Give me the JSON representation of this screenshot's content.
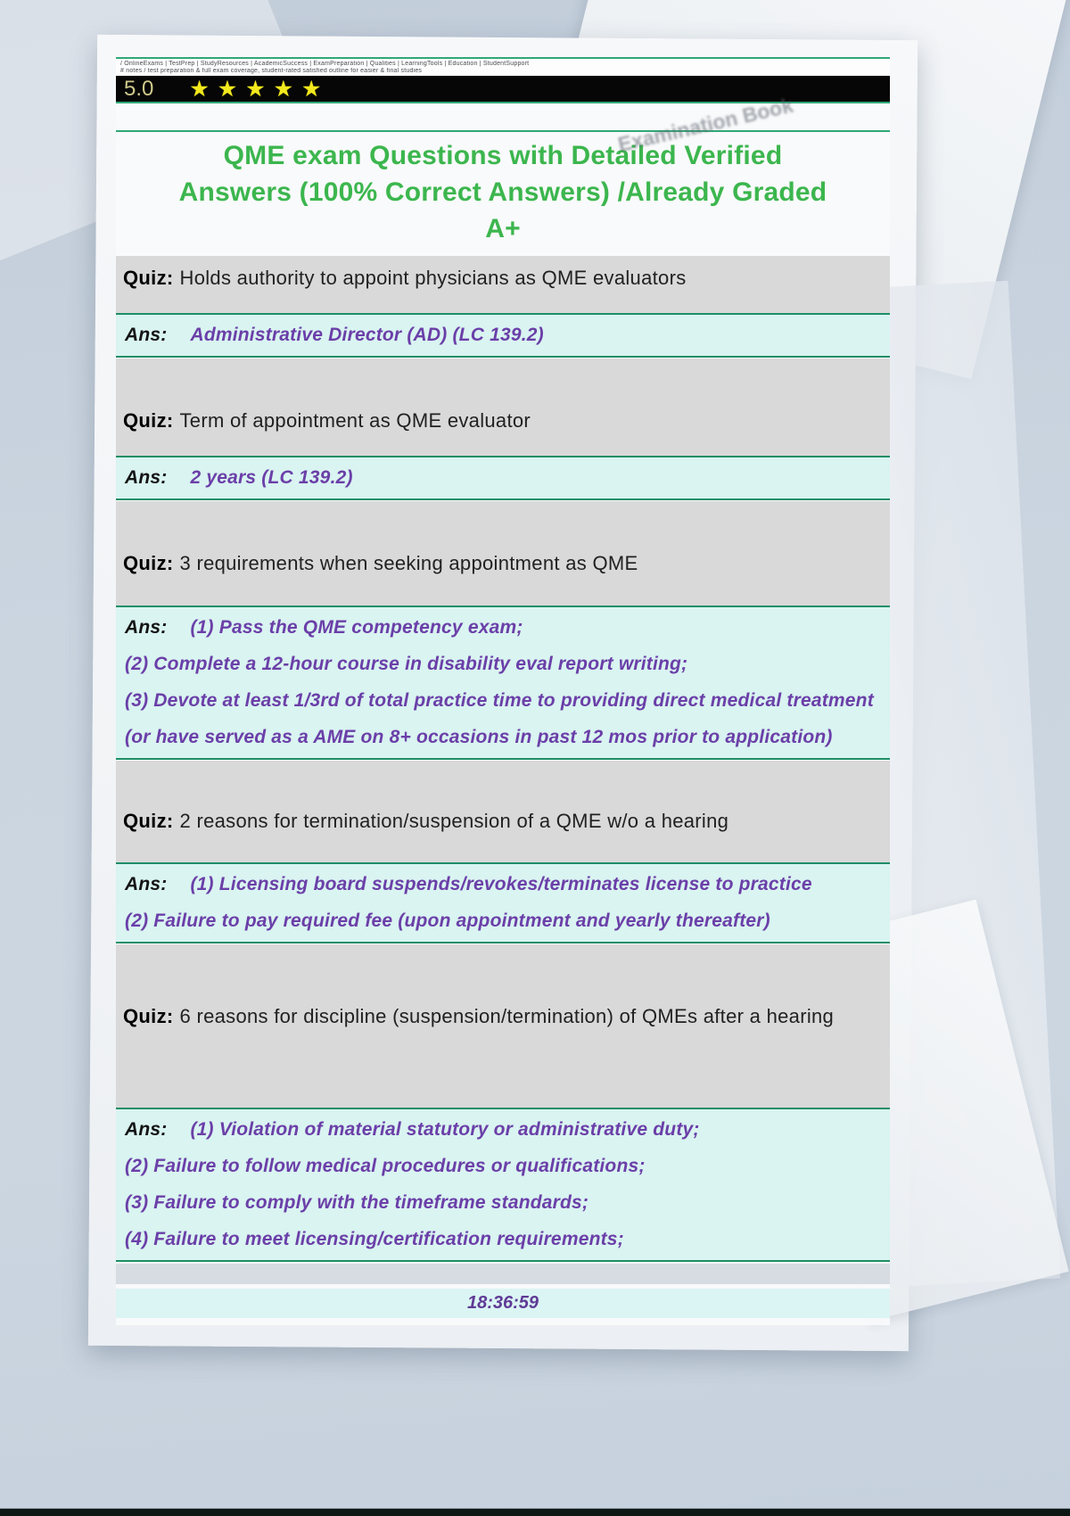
{
  "header": {
    "links_line1": "/ OnlineExams | TestPrep | StudyResources | AcademicSuccess | ExamPreparation | Qualities | LearningTools | Education | StudentSupport",
    "links_line2": "# notes / test preparation & full exam coverage, student-rated satisfied outline for easier & final studies",
    "rating_score": "5.0",
    "rating_stars": "★★★★★"
  },
  "watermark": "Examination Book",
  "title_lines": [
    "QME exam Questions with Detailed Verified",
    "Answers (100% Correct Answers) /Already Graded",
    "A+"
  ],
  "qa": [
    {
      "quiz_label": "Quiz:",
      "question": "Holds authority to appoint physicians as QME evaluators",
      "ans_label": "Ans:",
      "answers": [
        "Administrative Director (AD) (LC 139.2)"
      ]
    },
    {
      "quiz_label": "Quiz:",
      "question": "Term of appointment as QME evaluator",
      "ans_label": "Ans:",
      "answers": [
        "2 years (LC 139.2)"
      ]
    },
    {
      "quiz_label": "Quiz:",
      "question": "3 requirements when seeking appointment as QME",
      "ans_label": "Ans:",
      "answers": [
        "(1) Pass the QME competency exam;",
        "(2) Complete a 12-hour course in disability eval report writing;",
        "(3) Devote at least 1/3rd of total practice time to providing direct medical treatment (or have served as a AME on 8+ occasions in past 12 mos prior to application)"
      ]
    },
    {
      "quiz_label": "Quiz:",
      "question": "2 reasons for termination/suspension of a QME w/o a hearing",
      "ans_label": "Ans:",
      "answers": [
        "(1) Licensing board suspends/revokes/terminates license to practice",
        "(2) Failure to pay required fee (upon appointment and yearly thereafter)"
      ]
    },
    {
      "quiz_label": "Quiz:",
      "question": "6 reasons for discipline (suspension/termination) of QMEs after a hearing",
      "ans_label": "Ans:",
      "answers": [
        "(1) Violation of material statutory or administrative duty;",
        "(2) Failure to follow medical procedures or qualifications;",
        "(3) Failure to comply with the timeframe standards;",
        "(4) Failure to meet licensing/certification requirements;"
      ]
    }
  ],
  "timestamp": "18:36:59",
  "colors": {
    "title_green": "#3cb64e",
    "rule_green": "#2fa876",
    "ans_border_teal": "#1e8e66",
    "ans_background": "#d9f4f1",
    "quiz_background": "#d9d9d9",
    "answer_purple": "#6b3fa8",
    "star_yellow": "#f2e81e",
    "page_background": "#c9d4e0",
    "rating_bar_black": "#060606"
  }
}
